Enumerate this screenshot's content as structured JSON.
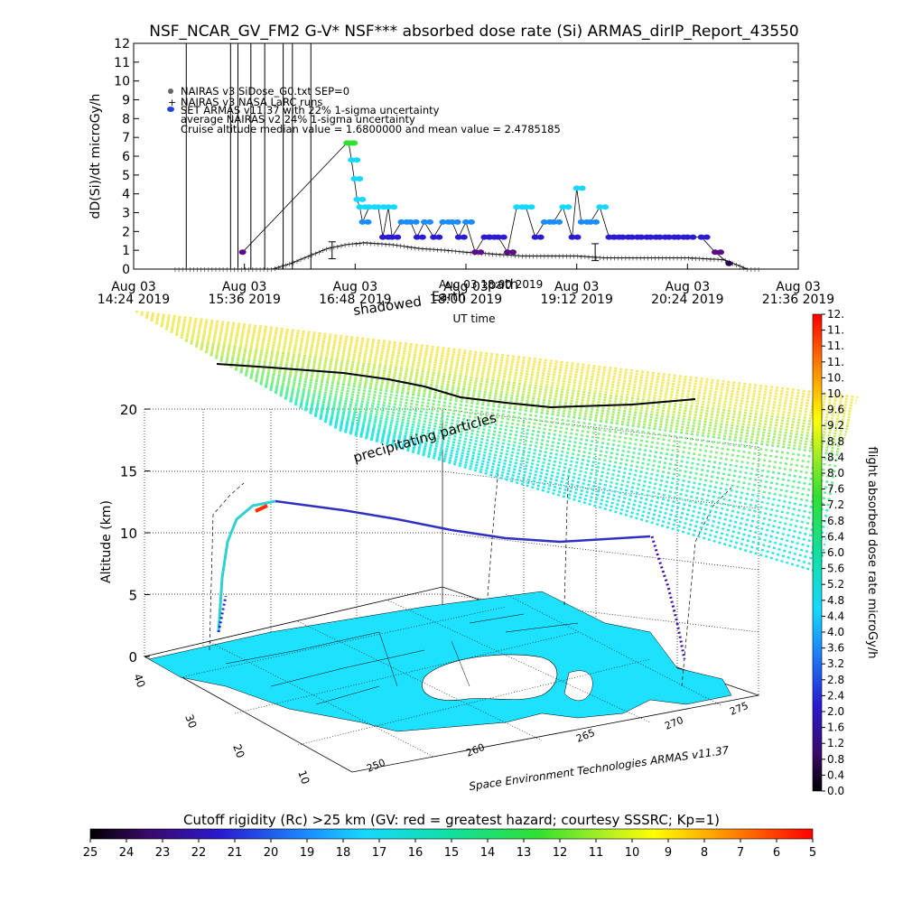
{
  "title": "NSF_NCAR_GV_FM2 G-V* NSF*** absorbed dose rate (Si) ARMAS_dirIP_Report_43550",
  "colors": {
    "nairas_v3": "#555555",
    "nasa_larc": "#333333",
    "armas": "#2244dd",
    "vertical_lines": "#000000"
  },
  "chart_data": [
    {
      "type": "line",
      "ylabel": "dD(Si)/dt microGy/h",
      "xlabel": "UT time",
      "ylim": [
        0,
        12
      ],
      "yticks": [
        "0",
        "1",
        "2",
        "3",
        "4",
        "5",
        "6",
        "7",
        "8",
        "9",
        "10",
        "11",
        "12"
      ],
      "xticks": [
        {
          "date": "Aug 03",
          "time": "14:24 2019"
        },
        {
          "date": "Aug 03",
          "time": "15:36 2019"
        },
        {
          "date": "Aug 03",
          "time": "16:48 2019"
        },
        {
          "date": "Aug 03",
          "time": "18:00 2019"
        },
        {
          "date": "Aug 03",
          "time": "19:12 2019"
        },
        {
          "date": "Aug 03",
          "time": "20:24 2019"
        },
        {
          "date": "Aug 03",
          "time": "21:36 2019"
        }
      ],
      "legend": [
        "NAIRAS v3 SiDose_G0.txt SEP=0",
        "NAIRAS v3 NASA LaRC runs",
        "SET ARMAS v11.37 with 22% 1-sigma uncertainty",
        "average NAIRAS v2 24% 1-sigma uncertainty",
        "Cruise altitude median value = 1.6800000 and mean value = 2.4785185"
      ],
      "legend_placement": "top-left",
      "vertical_event_times_h": [
        14.97,
        15.45,
        15.53,
        15.67,
        15.82,
        16.02,
        16.12,
        16.32
      ],
      "series": [
        {
          "name": "NAIRAS v3 NASA LaRC runs",
          "x_h": [
            14.7,
            15.5,
            15.9,
            16.1,
            16.3,
            16.5,
            16.7,
            16.9,
            17.2,
            17.5,
            17.8,
            18.0,
            18.3,
            18.6,
            18.9,
            19.2,
            19.5,
            19.8,
            20.1,
            20.4,
            20.6,
            20.8,
            20.9,
            21.05,
            21.3
          ],
          "y": [
            0,
            0,
            0,
            0.3,
            0.7,
            1.1,
            1.3,
            1.4,
            1.3,
            1.1,
            1.0,
            0.9,
            0.8,
            0.7,
            0.7,
            0.7,
            0.6,
            0.6,
            0.6,
            0.6,
            0.55,
            0.5,
            0.3,
            0,
            0
          ]
        },
        {
          "name": "SET ARMAS v11.37 with 22% 1-sigma uncertainty",
          "x_h": [
            15.58,
            16.71,
            16.73,
            16.76,
            16.79,
            16.82,
            16.85,
            16.88,
            16.95,
            17.05,
            17.1,
            17.16,
            17.2,
            17.3,
            17.4,
            17.47,
            17.55,
            17.65,
            17.75,
            17.85,
            17.92,
            18.0,
            18.1,
            18.2,
            18.25,
            18.35,
            18.45,
            18.55,
            18.65,
            18.75,
            18.85,
            18.95,
            19.05,
            19.15,
            19.2,
            19.25,
            19.35,
            19.45,
            19.55,
            19.6,
            19.7,
            19.8,
            19.9,
            20.0,
            20.1,
            20.2,
            20.3,
            20.4,
            20.55,
            20.7,
            20.85
          ],
          "y": [
            0.9,
            6.7,
            6.7,
            5.8,
            4.8,
            3.7,
            3.3,
            2.5,
            3.3,
            3.3,
            1.7,
            3.3,
            1.7,
            2.5,
            2.5,
            1.7,
            2.5,
            1.7,
            2.5,
            2.5,
            1.7,
            2.5,
            0.9,
            1.7,
            1.7,
            1.7,
            0.9,
            3.3,
            3.3,
            1.7,
            2.5,
            2.5,
            3.3,
            1.7,
            4.3,
            2.5,
            2.5,
            3.3,
            1.7,
            1.7,
            1.7,
            1.7,
            1.7,
            1.7,
            1.7,
            1.7,
            1.7,
            1.7,
            1.7,
            0.9,
            0.3
          ]
        }
      ],
      "error_bars": [
        {
          "x_h": 16.55,
          "y": 1.0,
          "err": 0.45
        },
        {
          "x_h": 19.4,
          "y": 0.9,
          "err": 0.45
        }
      ]
    },
    {
      "type": "scatter",
      "description_labels": [
        "Altitude (km)"
      ],
      "zlabel": "Altitude (km)",
      "zticks": [
        "0",
        "5",
        "10",
        "15",
        "20"
      ],
      "lat_ticks": [
        "40",
        "30",
        "20",
        "10"
      ],
      "lon_ticks": [
        "250",
        "260",
        "265",
        "270",
        "275"
      ],
      "annotations": [
        "shadowed",
        "Earth",
        "path",
        "Aug 03 18:00 2019",
        "precipitating particles"
      ],
      "credit": "Space Environment Technologies ARMAS v11.37"
    },
    {
      "type": "heatmap",
      "colorbar_label": "flight absorbed dose rate microGy/h",
      "colorbar_ticks": [
        "0.0",
        "0.4",
        "0.8",
        "1.2",
        "1.6",
        "2.0",
        "2.4",
        "2.8",
        "3.2",
        "3.6",
        "4.0",
        "4.4",
        "4.8",
        "5.2",
        "5.6",
        "6.0",
        "6.4",
        "6.8",
        "7.2",
        "7.6",
        "8.0",
        "8.4",
        "8.8",
        "9.2",
        "9.6",
        "10.",
        "10.",
        "11.",
        "11.",
        "11.",
        "12."
      ],
      "range": [
        0,
        12
      ]
    },
    {
      "type": "heatmap",
      "colorbar_label": "Cutoff rigidity (Rc) >25 km (GV: red = greatest hazard; courtesy SSSRC; Kp=1)",
      "colorbar_ticks": [
        "25",
        "24",
        "23",
        "22",
        "21",
        "20",
        "19",
        "18",
        "17",
        "16",
        "15",
        "14",
        "13",
        "12",
        "11",
        "10",
        "9",
        "8",
        "7",
        "6",
        "5"
      ],
      "range": [
        25,
        5
      ]
    }
  ]
}
